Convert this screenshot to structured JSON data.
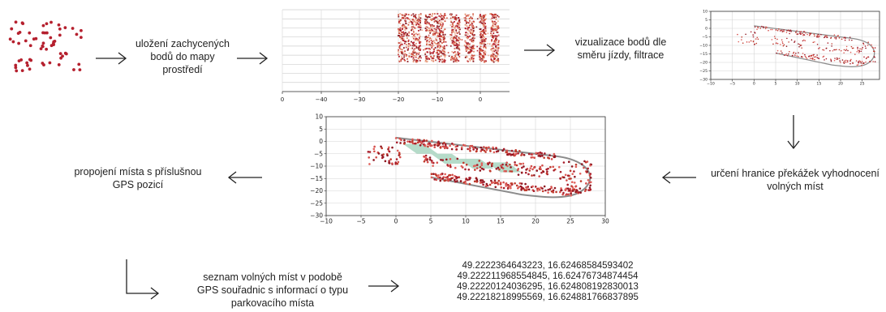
{
  "steps": {
    "s1": "uložení zachycených bodů do mapy prostředí",
    "s2": "vizualizace bodů dle směru jízdy, filtrace",
    "s3": "určení hranice překážek vyhodnocení volných míst",
    "s4": "propojení místa s příslušnou GPS pozicí",
    "s5": "seznam volných míst v podobě GPS souřadnic s informací o typu parkovacího místa"
  },
  "gps_list": [
    "49.2222364643223, 16.62468584593402",
    "49.222211968554845, 16.62476734874454",
    "49.22220124036295, 16.624808192830013",
    "49.22218218995569, 16.624881766837895"
  ],
  "chart_data": [
    {
      "type": "scatter",
      "x_ticks": [
        "0",
        "−40",
        "−30",
        "−20",
        "−10",
        "0"
      ],
      "y_ticks": [],
      "point_color": "#b5202e"
    },
    {
      "type": "scatter",
      "x_ticks": [
        "−10",
        "−5",
        "0",
        "5",
        "10",
        "15",
        "20",
        "25"
      ],
      "y_ticks": [
        "10",
        "5",
        "0",
        "−5",
        "−10",
        "−15",
        "−20",
        "−25",
        "−30"
      ],
      "xlim": [
        -10,
        29
      ],
      "ylim": [
        -30,
        10
      ],
      "point_color": "#c0392b"
    },
    {
      "type": "scatter",
      "x_ticks": [
        "−10",
        "−5",
        "0",
        "5",
        "10",
        "15",
        "20",
        "25",
        "30"
      ],
      "y_ticks": [
        "10",
        "5",
        "0",
        "−5",
        "−10",
        "−15",
        "−20",
        "−25",
        "−30"
      ],
      "xlim": [
        -10,
        30
      ],
      "ylim": [
        -30,
        10
      ],
      "point_color": "#c0392b",
      "free_spot_color": "#a8d5bf"
    }
  ]
}
